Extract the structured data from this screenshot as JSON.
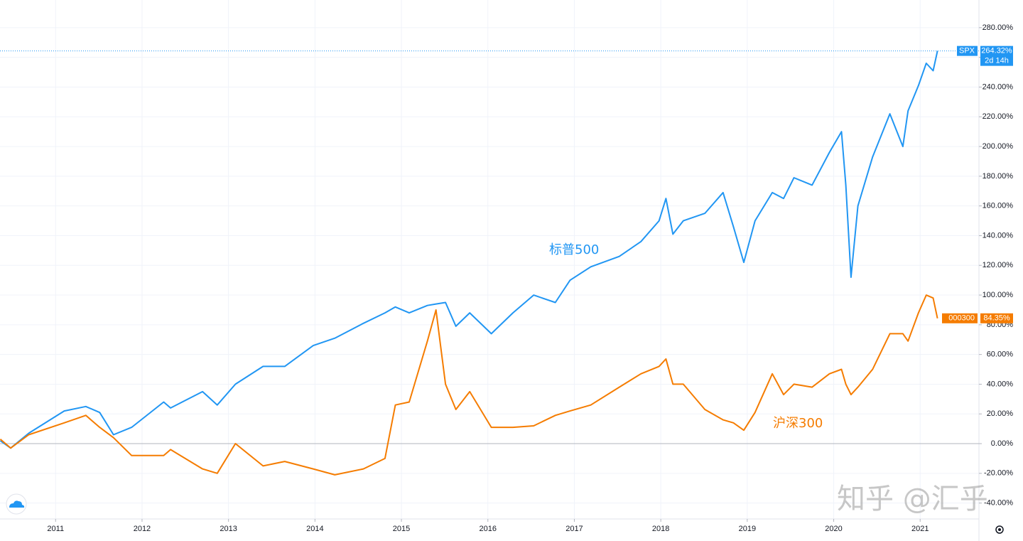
{
  "chart_data": {
    "type": "line",
    "x": [
      2010.36,
      2010.48,
      2010.69,
      2011.1,
      2011.35,
      2011.51,
      2011.67,
      2011.88,
      2012.25,
      2012.33,
      2012.7,
      2012.87,
      2013.08,
      2013.4,
      2013.65,
      2013.98,
      2014.23,
      2014.56,
      2014.81,
      2014.93,
      2015.09,
      2015.3,
      2015.4,
      2015.51,
      2015.63,
      2015.79,
      2016.04,
      2016.29,
      2016.53,
      2016.78,
      2016.95,
      2017.19,
      2017.52,
      2017.77,
      2017.98,
      2018.06,
      2018.14,
      2018.26,
      2018.51,
      2018.72,
      2018.84,
      2018.96,
      2019.09,
      2019.29,
      2019.42,
      2019.54,
      2019.75,
      2019.95,
      2020.09,
      2020.14,
      2020.2,
      2020.28,
      2020.45,
      2020.65,
      2020.8,
      2020.86,
      2020.98,
      2021.07,
      2021.15,
      2021.2
    ],
    "series": [
      {
        "name": "SPX",
        "color": "#2196f3",
        "value_label": "264.32%",
        "timer": "2d 14h",
        "values": [
          2,
          -3,
          7,
          22,
          25,
          21,
          6,
          11,
          28,
          24,
          35,
          26,
          40,
          52,
          52,
          66,
          71,
          81,
          88,
          92,
          88,
          93,
          94,
          95,
          79,
          88,
          74,
          88,
          100,
          95,
          110,
          119,
          126,
          136,
          150,
          165,
          141,
          150,
          155,
          169,
          146,
          122,
          150,
          169,
          165,
          179,
          174,
          196,
          210,
          174,
          112,
          160,
          193,
          222,
          200,
          224,
          241,
          256,
          251,
          264.32
        ]
      },
      {
        "name": "000300",
        "color": "#f57c00",
        "value_label": "84.35%",
        "values": [
          3,
          -3,
          6,
          14,
          19,
          11,
          4,
          -8,
          -8,
          -4,
          -17,
          -20,
          0,
          -15,
          -12,
          -17,
          -21,
          -17,
          -10,
          26,
          28,
          69,
          90,
          40,
          23,
          35,
          11,
          11,
          12,
          19,
          22,
          26,
          38,
          47,
          52,
          57,
          40,
          40,
          23,
          16,
          14,
          9,
          21,
          47,
          33,
          40,
          38,
          47,
          50,
          40,
          33,
          38,
          50,
          74,
          74,
          69,
          88,
          100,
          98,
          84.35
        ]
      }
    ],
    "xlim": [
      2010.357,
      2021.68
    ],
    "xticks": [
      2011,
      2012,
      2013,
      2014,
      2015,
      2016,
      2017,
      2018,
      2019,
      2020,
      2021
    ],
    "ylim": [
      -50.7,
      298.6
    ],
    "yticks": [
      {
        "value": 280,
        "label": "280.00%"
      },
      {
        "value": 260,
        "label": "260.00%"
      },
      {
        "value": 240,
        "label": "240.00%"
      },
      {
        "value": 220,
        "label": "220.00%"
      },
      {
        "value": 200,
        "label": "200.00%"
      },
      {
        "value": 180,
        "label": "180.00%"
      },
      {
        "value": 160,
        "label": "160.00%"
      },
      {
        "value": 140,
        "label": "140.00%"
      },
      {
        "value": 120,
        "label": "120.00%"
      },
      {
        "value": 100,
        "label": "100.00%"
      },
      {
        "value": 80,
        "label": "80.00%"
      },
      {
        "value": 60,
        "label": "60.00%"
      },
      {
        "value": 40,
        "label": "40.00%"
      },
      {
        "value": 20,
        "label": "20.00%"
      },
      {
        "value": 0,
        "label": "0.00%"
      },
      {
        "value": -20,
        "label": "-20.00%"
      },
      {
        "value": -40,
        "label": "-40.00%"
      }
    ],
    "grid": true,
    "annotations": [
      "标普500",
      "沪深300"
    ],
    "watermark": "知乎 @汇乎"
  }
}
